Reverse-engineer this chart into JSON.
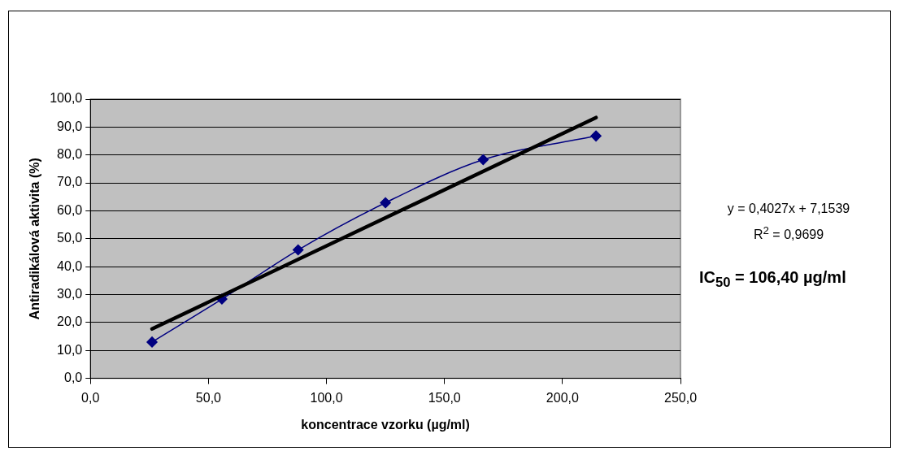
{
  "chart_data": {
    "type": "line",
    "xlabel": "koncentrace vzorku (µg/ml)",
    "ylabel": "Antiradikálová aktivita (%)",
    "xlim": [
      0,
      250
    ],
    "xticks": [
      {
        "value": 0,
        "label": "0,0"
      },
      {
        "value": 50,
        "label": "50,0"
      },
      {
        "value": 100,
        "label": "100,0"
      },
      {
        "value": 150,
        "label": "150,0"
      },
      {
        "value": 200,
        "label": "200,0"
      },
      {
        "value": 250,
        "label": "250,0"
      }
    ],
    "ylim": [
      0,
      100
    ],
    "yticks": [
      {
        "value": 0,
        "label": "0,0"
      },
      {
        "value": 10,
        "label": "10,0"
      },
      {
        "value": 20,
        "label": "20,0"
      },
      {
        "value": 30,
        "label": "30,0"
      },
      {
        "value": 40,
        "label": "40,0"
      },
      {
        "value": 50,
        "label": "50,0"
      },
      {
        "value": 60,
        "label": "60,0"
      },
      {
        "value": 70,
        "label": "70,0"
      },
      {
        "value": 80,
        "label": "80,0"
      },
      {
        "value": 90,
        "label": "90,0"
      },
      {
        "value": 100,
        "label": "100,0"
      }
    ],
    "grid": "y",
    "legend": false,
    "series": [
      {
        "color": "#000080",
        "marker": "diamond",
        "x": [
          26.1,
          55.7,
          88.0,
          125.0,
          166.4,
          214.2
        ],
        "values": [
          13.0,
          28.4,
          46.0,
          62.9,
          78.3,
          86.8
        ]
      },
      {
        "color": "#000000",
        "marker": "none",
        "x": [
          26.1,
          214.2
        ],
        "values": [
          17.7,
          93.4
        ]
      }
    ],
    "annotations": [
      "y = 0,4027x + 7,1539",
      "R$^{2}$ = 0,9699",
      "IC$_{50}$ = 106,40 µg/ml"
    ]
  }
}
